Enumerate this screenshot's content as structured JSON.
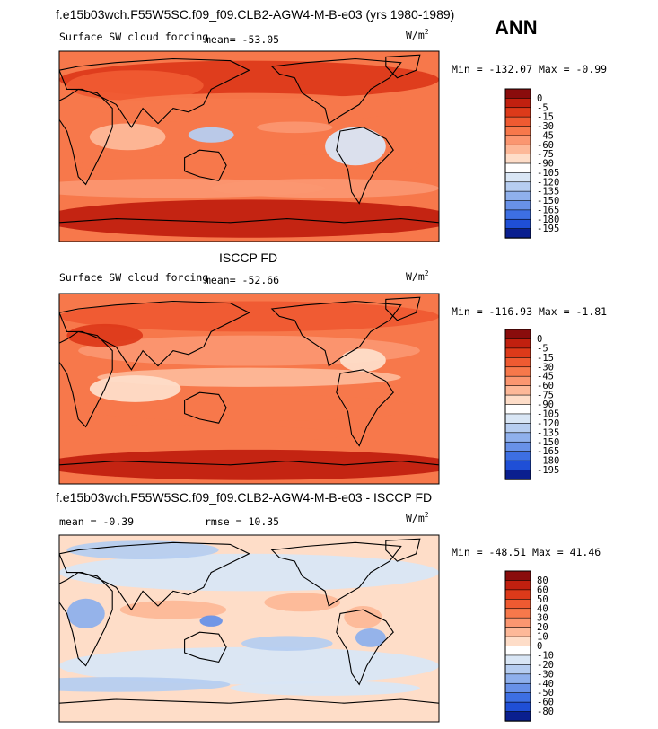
{
  "header": {
    "title": "f.e15b03wch.F55W5SC.f09_f09.CLB2-AGW4-M-B-e03 (yrs 1980-1989)",
    "season": "ANN"
  },
  "chart_data": [
    {
      "type": "heatmap",
      "title": "Surface SW cloud forcing",
      "mean_label": "mean= ",
      "mean": "-53.05",
      "units": "W/m",
      "units_exp": "2",
      "min_label": "Min = ",
      "min": "-132.07",
      "max_label": " Max = ",
      "max": "-0.99",
      "levels": [
        "0",
        "-5",
        "-15",
        "-30",
        "-45",
        "-60",
        "-75",
        "-90",
        "-105",
        "-120",
        "-135",
        "-150",
        "-165",
        "-180",
        "-195"
      ],
      "colors": [
        "#8a0c0c",
        "#c1200f",
        "#dd3a1a",
        "#ef5a31",
        "#f7784b",
        "#fb9670",
        "#fdb898",
        "#feddc8",
        "#ffffff",
        "#d9e6f5",
        "#b6cdf0",
        "#8fb0ec",
        "#6891e8",
        "#3d6fe3",
        "#1f4fd6",
        "#0a1f8f"
      ]
    },
    {
      "type": "heatmap",
      "title": "Surface SW cloud forcing",
      "panel_label": "ISCCP FD",
      "mean_label": "mean= ",
      "mean": "-52.66",
      "units": "W/m",
      "units_exp": "2",
      "min_label": "Min = ",
      "min": "-116.93",
      "max_label": " Max = ",
      "max": "-1.81",
      "levels": [
        "0",
        "-5",
        "-15",
        "-30",
        "-45",
        "-60",
        "-75",
        "-90",
        "-105",
        "-120",
        "-135",
        "-150",
        "-165",
        "-180",
        "-195"
      ],
      "colors": [
        "#8a0c0c",
        "#c1200f",
        "#dd3a1a",
        "#ef5a31",
        "#f7784b",
        "#fb9670",
        "#fdb898",
        "#feddc8",
        "#ffffff",
        "#d9e6f5",
        "#b6cdf0",
        "#8fb0ec",
        "#6891e8",
        "#3d6fe3",
        "#1f4fd6",
        "#0a1f8f"
      ]
    },
    {
      "type": "heatmap",
      "title": "f.e15b03wch.F55W5SC.f09_f09.CLB2-AGW4-M-B-e03 - ISCCP FD",
      "mean_label": "mean = ",
      "mean": "-0.39",
      "rmse_label": "rmse = ",
      "rmse": "10.35",
      "units": "W/m",
      "units_exp": "2",
      "min_label": "Min = ",
      "min": "-48.51",
      "max_label": " Max = ",
      "max": "41.46",
      "levels": [
        "80",
        "60",
        "50",
        "40",
        "30",
        "20",
        "10",
        "0",
        "-10",
        "-20",
        "-30",
        "-40",
        "-50",
        "-60",
        "-80"
      ],
      "colors": [
        "#8a0c0c",
        "#c1200f",
        "#dd3a1a",
        "#ef5a31",
        "#f7784b",
        "#fb9670",
        "#fdb898",
        "#feddc8",
        "#ffffff",
        "#d9e6f5",
        "#b6cdf0",
        "#8fb0ec",
        "#6891e8",
        "#3d6fe3",
        "#1f4fd6",
        "#0a1f8f"
      ]
    }
  ]
}
